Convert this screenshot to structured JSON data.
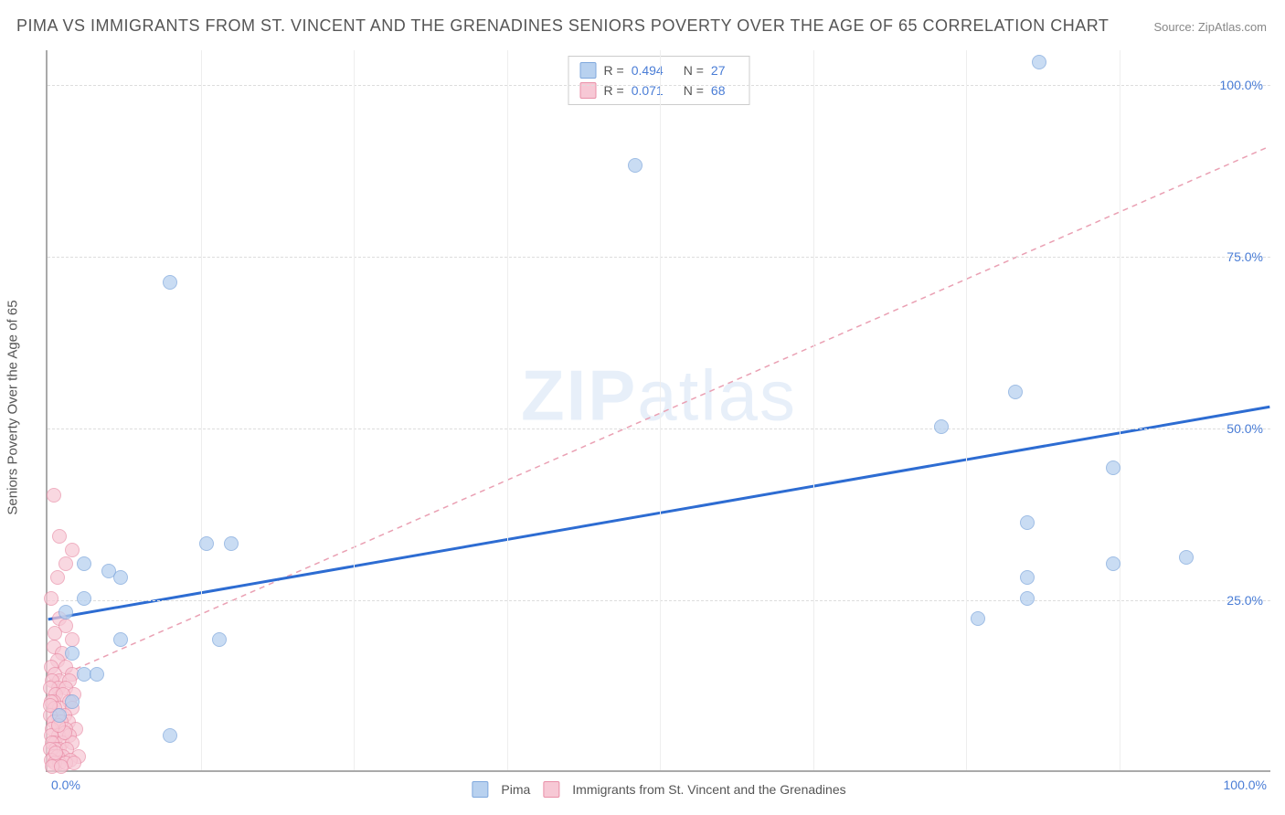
{
  "title": "PIMA VS IMMIGRANTS FROM ST. VINCENT AND THE GRENADINES SENIORS POVERTY OVER THE AGE OF 65 CORRELATION CHART",
  "source": "Source: ZipAtlas.com",
  "ylabel": "Seniors Poverty Over the Age of 65",
  "watermark_a": "ZIP",
  "watermark_b": "atlas",
  "chart": {
    "type": "scatter",
    "xlim": [
      0,
      100
    ],
    "ylim": [
      0,
      105
    ],
    "xticks": [
      0,
      100
    ],
    "xtick_labels": [
      "0.0%",
      "100.0%"
    ],
    "yticks": [
      25,
      50,
      75,
      100
    ],
    "ytick_labels": [
      "25.0%",
      "50.0%",
      "75.0%",
      "100.0%"
    ],
    "vgrid": [
      12.5,
      25,
      37.5,
      50,
      62.5,
      75,
      87.5
    ],
    "background_color": "#ffffff",
    "grid_color": "#dddddd",
    "axis_color": "#aaaaaa",
    "tick_label_color": "#4a7dd6",
    "marker_radius": 8,
    "series": [
      {
        "name": "Pima",
        "color_fill": "#b8d1ef",
        "color_stroke": "#7fa8dd",
        "opacity": 0.75,
        "R": "0.494",
        "N": "27",
        "trend": {
          "x1": 0,
          "y1": 22,
          "x2": 100,
          "y2": 53,
          "color": "#2d6cd2",
          "width": 3,
          "dash": "none"
        },
        "points": [
          [
            10,
            71
          ],
          [
            48,
            88
          ],
          [
            81,
            103
          ],
          [
            3,
            30
          ],
          [
            5,
            29
          ],
          [
            6,
            28
          ],
          [
            3,
            25
          ],
          [
            1.5,
            23
          ],
          [
            13,
            33
          ],
          [
            15,
            33
          ],
          [
            14,
            19
          ],
          [
            3,
            14
          ],
          [
            2,
            10
          ],
          [
            10,
            5
          ],
          [
            4,
            14
          ],
          [
            1,
            8
          ],
          [
            73,
            50
          ],
          [
            79,
            55
          ],
          [
            80,
            36
          ],
          [
            87,
            30
          ],
          [
            87,
            44
          ],
          [
            80,
            25
          ],
          [
            80,
            28
          ],
          [
            76,
            22
          ],
          [
            93,
            31
          ],
          [
            6,
            19
          ],
          [
            2,
            17
          ]
        ]
      },
      {
        "name": "Immigrants from St. Vincent and the Grenadines",
        "color_fill": "#f7c8d5",
        "color_stroke": "#e98fa8",
        "opacity": 0.7,
        "R": "0.071",
        "N": "68",
        "trend": {
          "x1": 0,
          "y1": 13,
          "x2": 100,
          "y2": 91,
          "color": "#eaa0b3",
          "width": 1.5,
          "dash": "6,5"
        },
        "points": [
          [
            0.5,
            40
          ],
          [
            1,
            34
          ],
          [
            1.5,
            30
          ],
          [
            2,
            32
          ],
          [
            0.8,
            28
          ],
          [
            0.3,
            25
          ],
          [
            1,
            22
          ],
          [
            1.5,
            21
          ],
          [
            0.6,
            20
          ],
          [
            2,
            19
          ],
          [
            0.5,
            18
          ],
          [
            1.2,
            17
          ],
          [
            0.8,
            16
          ],
          [
            1.5,
            15
          ],
          [
            0.3,
            15
          ],
          [
            2,
            14
          ],
          [
            0.6,
            14
          ],
          [
            1,
            13
          ],
          [
            1.8,
            13
          ],
          [
            0.4,
            13
          ],
          [
            0.9,
            12
          ],
          [
            1.5,
            12
          ],
          [
            0.2,
            12
          ],
          [
            2.2,
            11
          ],
          [
            0.7,
            11
          ],
          [
            1.3,
            11
          ],
          [
            0.5,
            10
          ],
          [
            1.8,
            10
          ],
          [
            0.3,
            10
          ],
          [
            1,
            9
          ],
          [
            2,
            9
          ],
          [
            0.6,
            9
          ],
          [
            1.4,
            8
          ],
          [
            0.8,
            8
          ],
          [
            0.2,
            8
          ],
          [
            1.7,
            7
          ],
          [
            0.5,
            7
          ],
          [
            1.1,
            7
          ],
          [
            2.3,
            6
          ],
          [
            0.4,
            6
          ],
          [
            1.5,
            6
          ],
          [
            0.9,
            5
          ],
          [
            0.3,
            5
          ],
          [
            1.8,
            5
          ],
          [
            0.6,
            4
          ],
          [
            1.2,
            4
          ],
          [
            2,
            4
          ],
          [
            0.4,
            4
          ],
          [
            1,
            3
          ],
          [
            0.7,
            3
          ],
          [
            1.6,
            3
          ],
          [
            0.2,
            3
          ],
          [
            2.5,
            2
          ],
          [
            0.5,
            2
          ],
          [
            1.3,
            2
          ],
          [
            0.8,
            2
          ],
          [
            1.9,
            1.5
          ],
          [
            0.3,
            1.5
          ],
          [
            1,
            1
          ],
          [
            0.6,
            1
          ],
          [
            1.5,
            1
          ],
          [
            2.2,
            1
          ],
          [
            0.4,
            0.5
          ],
          [
            1.1,
            0.5
          ],
          [
            0.7,
            2.5
          ],
          [
            1.4,
            5.5
          ],
          [
            0.9,
            6.5
          ],
          [
            0.2,
            9.5
          ]
        ]
      }
    ]
  },
  "legend_top": {
    "rows": [
      {
        "swatch_fill": "#b8d1ef",
        "swatch_stroke": "#7fa8dd",
        "r_label": "R =",
        "r_val": "0.494",
        "n_label": "N =",
        "n_val": "27"
      },
      {
        "swatch_fill": "#f7c8d5",
        "swatch_stroke": "#e98fa8",
        "r_label": "R =",
        "r_val": "0.071",
        "n_label": "N =",
        "n_val": "68"
      }
    ]
  },
  "legend_bottom": [
    {
      "swatch_fill": "#b8d1ef",
      "swatch_stroke": "#7fa8dd",
      "label": "Pima"
    },
    {
      "swatch_fill": "#f7c8d5",
      "swatch_stroke": "#e98fa8",
      "label": "Immigrants from St. Vincent and the Grenadines"
    }
  ]
}
